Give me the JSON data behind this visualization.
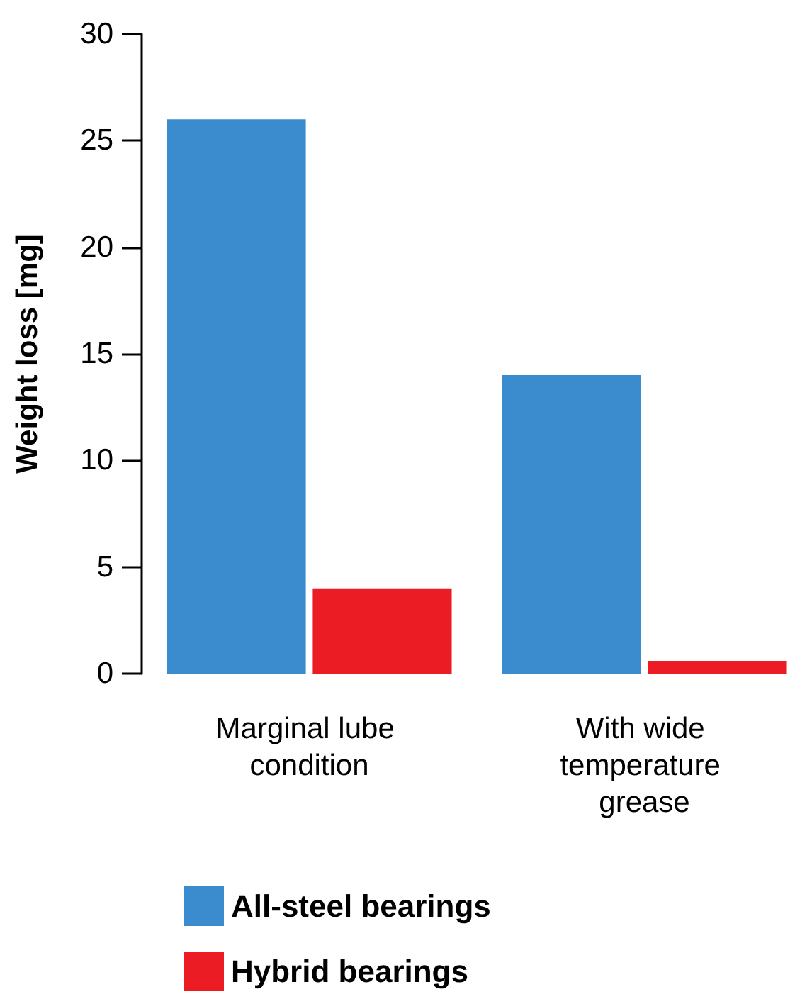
{
  "chart_data": {
    "type": "bar",
    "ylabel": "Weight loss [mg]",
    "categories": [
      "Marginal lube condition",
      "With wide temperature grease"
    ],
    "series": [
      {
        "name": "All-steel bearings",
        "color": "#3a8ccf",
        "values": [
          26,
          14
        ]
      },
      {
        "name": "Hybrid bearings",
        "color": "#ec1c24",
        "values": [
          4,
          0.6
        ]
      }
    ],
    "ylim": [
      0,
      30
    ],
    "yticks": [
      0,
      5,
      10,
      15,
      20,
      25,
      30
    ],
    "grid": false,
    "legend": "bottom"
  }
}
